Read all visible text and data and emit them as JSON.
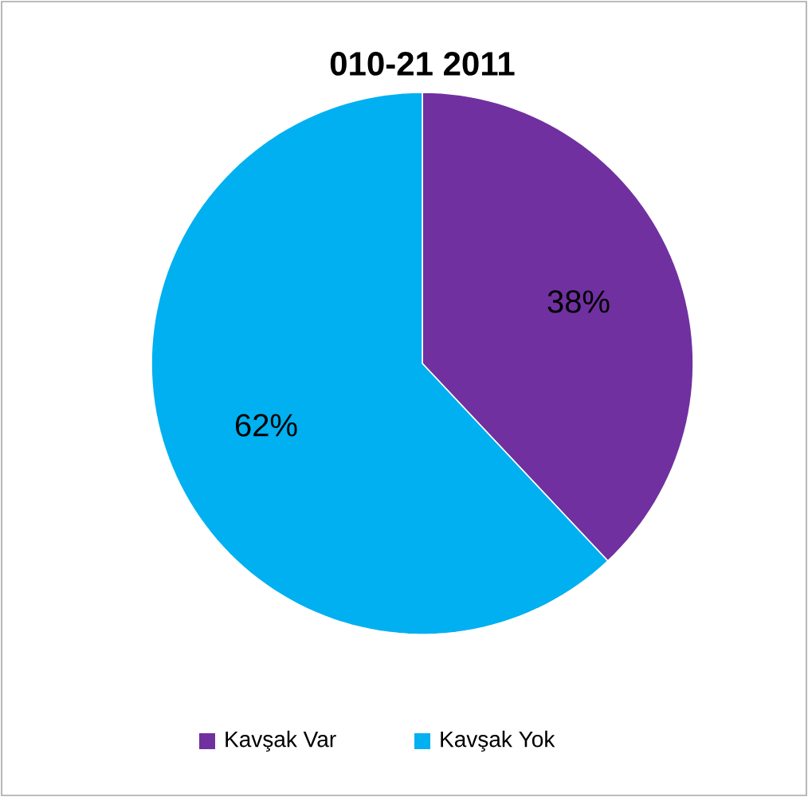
{
  "chart_data": {
    "type": "pie",
    "title": "010-21 2011",
    "categories": [
      "Kavşak Var",
      "Kavşak Yok"
    ],
    "values": [
      38,
      62
    ],
    "value_labels": [
      "38%",
      "62%"
    ],
    "colors": [
      "#7030a0",
      "#00b0f0"
    ],
    "legend": "bottom"
  }
}
